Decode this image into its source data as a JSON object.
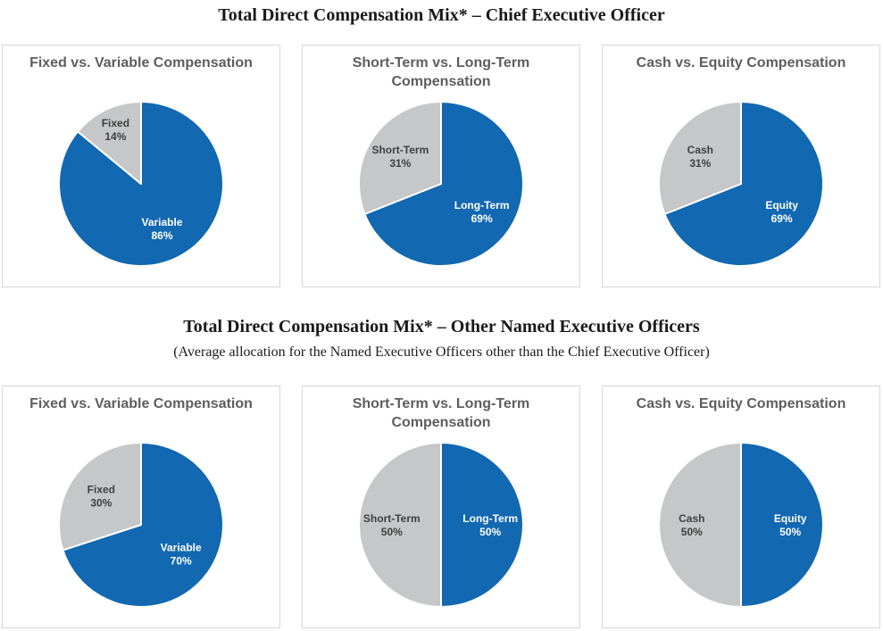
{
  "colors": {
    "pie_blue": "#1268B1",
    "pie_gray": "#C6C7C8",
    "label_on_blue": "#FFFFFF",
    "label_on_gray": "#3F3F3F",
    "panel_border": "#D7D7D7",
    "chart_title_gray": "#5E5E5E",
    "section_title_black": "#1A1A1A"
  },
  "pie_style": {
    "start_angle_deg": 0,
    "start_position": "12 o'clock",
    "direction": "clockwise",
    "slice_border_color": "#FFFFFF",
    "slice_border_width": 2,
    "label_format": "{label} {value}%",
    "legend": "none"
  },
  "sections": [
    {
      "title": "Total Direct Compensation Mix* – Chief Executive Officer",
      "subtitle": ""
    },
    {
      "title": "Total Direct Compensation Mix* – Other Named Executive Officers",
      "subtitle": "(Average allocation for the Named Executive Officers other than the Chief Executive Officer)"
    }
  ],
  "chart_data": [
    {
      "type": "pie",
      "group": "Chief Executive Officer",
      "title": "Fixed vs. Variable Compensation",
      "slices": [
        {
          "label": "Variable",
          "value": 86,
          "color": "#1268B1",
          "label_color": "#FFFFFF"
        },
        {
          "label": "Fixed",
          "value": 14,
          "color": "#C6C7C8",
          "label_color": "#3F3F3F"
        }
      ]
    },
    {
      "type": "pie",
      "group": "Chief Executive Officer",
      "title": "Short-Term vs. Long-Term Compensation",
      "slices": [
        {
          "label": "Long-Term",
          "value": 69,
          "color": "#1268B1",
          "label_color": "#FFFFFF"
        },
        {
          "label": "Short-Term",
          "value": 31,
          "color": "#C6C7C8",
          "label_color": "#3F3F3F"
        }
      ]
    },
    {
      "type": "pie",
      "group": "Chief Executive Officer",
      "title": "Cash vs. Equity Compensation",
      "slices": [
        {
          "label": "Equity",
          "value": 69,
          "color": "#1268B1",
          "label_color": "#FFFFFF"
        },
        {
          "label": "Cash",
          "value": 31,
          "color": "#C6C7C8",
          "label_color": "#3F3F3F"
        }
      ]
    },
    {
      "type": "pie",
      "group": "Other Named Executive Officers",
      "title": "Fixed vs. Variable Compensation",
      "slices": [
        {
          "label": "Variable",
          "value": 70,
          "color": "#1268B1",
          "label_color": "#FFFFFF"
        },
        {
          "label": "Fixed",
          "value": 30,
          "color": "#C6C7C8",
          "label_color": "#3F3F3F"
        }
      ]
    },
    {
      "type": "pie",
      "group": "Other Named Executive Officers",
      "title": "Short-Term vs. Long-Term Compensation",
      "slices": [
        {
          "label": "Long-Term",
          "value": 50,
          "color": "#1268B1",
          "label_color": "#FFFFFF"
        },
        {
          "label": "Short-Term",
          "value": 50,
          "color": "#C6C7C8",
          "label_color": "#3F3F3F"
        }
      ]
    },
    {
      "type": "pie",
      "group": "Other Named Executive Officers",
      "title": "Cash vs. Equity Compensation",
      "slices": [
        {
          "label": "Equity",
          "value": 50,
          "color": "#1268B1",
          "label_color": "#FFFFFF"
        },
        {
          "label": "Cash",
          "value": 50,
          "color": "#C6C7C8",
          "label_color": "#3F3F3F"
        }
      ]
    }
  ]
}
